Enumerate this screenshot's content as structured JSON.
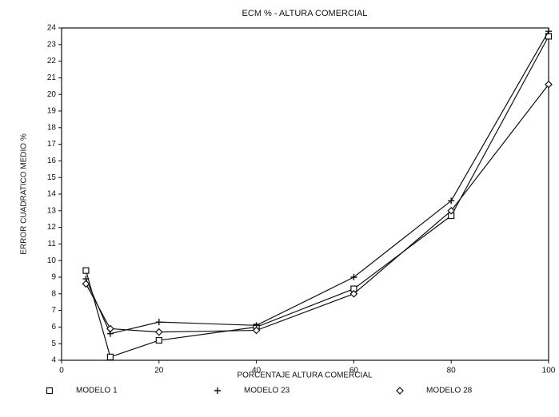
{
  "chart_data": {
    "type": "line",
    "title": "ECM % - ALTURA COMERCIAL",
    "x_label": "PORCENTAJE ALTURA COMERCIAL",
    "y_label": "ERROR CUADRATICO MEDIO %",
    "x": [
      5,
      10,
      20,
      40,
      60,
      80,
      100
    ],
    "series": [
      {
        "name": "MODELO 1",
        "color": "#111111",
        "marker": "square",
        "values": [
          9.4,
          4.2,
          5.2,
          6.0,
          8.3,
          12.7,
          23.5
        ]
      },
      {
        "name": "MODELO 23",
        "color": "#111111",
        "marker": "plus",
        "values": [
          8.9,
          5.6,
          6.3,
          6.1,
          9.0,
          13.6,
          23.8
        ]
      },
      {
        "name": "MODELO 28",
        "color": "#111111",
        "marker": "diamond",
        "values": [
          8.6,
          5.9,
          5.7,
          5.8,
          8.0,
          13.0,
          20.6
        ]
      }
    ],
    "xlim": [
      0,
      100
    ],
    "xticks": [
      0,
      20,
      40,
      60,
      80,
      100
    ],
    "ylim": [
      4,
      24
    ],
    "yticks": [
      4,
      5,
      6,
      7,
      8,
      9,
      10,
      11,
      12,
      13,
      14,
      15,
      16,
      17,
      18,
      19,
      20,
      21,
      22,
      23,
      24
    ],
    "legend": "bottom"
  }
}
